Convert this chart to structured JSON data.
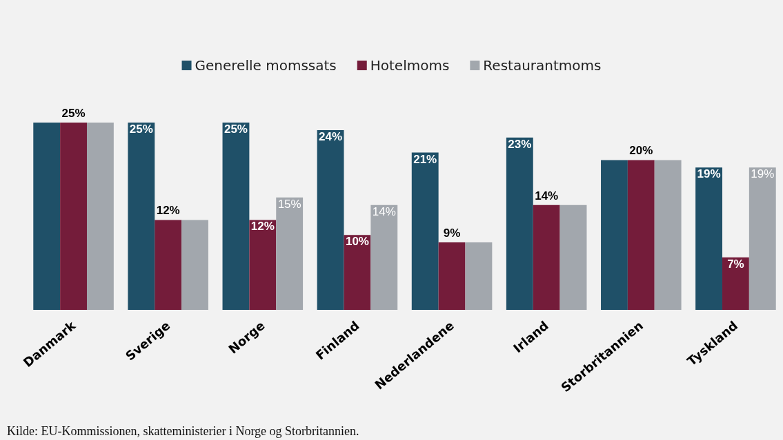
{
  "chart_data": {
    "type": "bar",
    "categories": [
      "Danmark",
      "Sverige",
      "Norge",
      "Finland",
      "Nederlandene",
      "Irland",
      "Storbritannien",
      "Tyskland"
    ],
    "series": [
      {
        "name": "Generelle momssats",
        "color": "#1f5068",
        "values": [
          25,
          25,
          25,
          24,
          21,
          23,
          20,
          19
        ],
        "value_labels": [
          null,
          "25%",
          "25%",
          "24%",
          "21%",
          "23%",
          null,
          "19%"
        ]
      },
      {
        "name": "Hotelmoms",
        "color": "#741c3a",
        "values": [
          25,
          12,
          12,
          10,
          9,
          14,
          20,
          7
        ],
        "value_labels": [
          "25%",
          "12%",
          "12%",
          "10%",
          "9%",
          "14%",
          "20%",
          "7%"
        ]
      },
      {
        "name": "Restaurantmoms",
        "color": "#a2a7ad",
        "values": [
          25,
          12,
          15,
          14,
          9,
          14,
          20,
          19
        ],
        "value_labels": [
          null,
          null,
          "15%",
          "14%",
          null,
          null,
          null,
          "19%"
        ]
      }
    ],
    "legend": "top",
    "annotations": [
      "Kilde: EU-Kommissionen, skatteministerier i Norge og Storbritannien."
    ]
  }
}
